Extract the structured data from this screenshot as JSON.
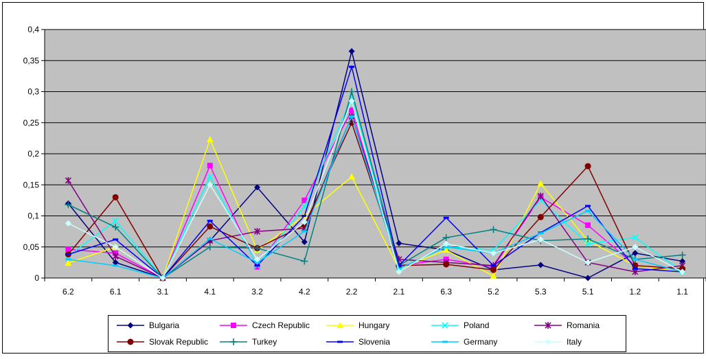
{
  "chart_data": {
    "type": "line",
    "categories": [
      "6.2",
      "6.1",
      "3.1",
      "4.1",
      "3.2",
      "4.2",
      "2.2",
      "2.1",
      "6.3",
      "5.2",
      "5.3",
      "5.1",
      "1.2",
      "1.1"
    ],
    "ylim": [
      0,
      0.4
    ],
    "yticks": [
      "0",
      "0,05",
      "0,1",
      "0,15",
      "0,2",
      "0,25",
      "0,3",
      "0,35",
      "0,4"
    ],
    "grid": true,
    "legend_position": "bottom",
    "plot_background": "#c0c0c0",
    "series": [
      {
        "name": "Bulgaria",
        "color": "#000080",
        "marker": "diamond",
        "values": [
          0.12,
          0.025,
          0.0,
          0.06,
          0.146,
          0.058,
          0.365,
          0.056,
          0.045,
          0.013,
          0.021,
          0.0,
          0.04,
          0.027
        ]
      },
      {
        "name": "Czech Republic",
        "color": "#ff00ff",
        "marker": "square",
        "values": [
          0.046,
          0.04,
          0.0,
          0.181,
          0.018,
          0.125,
          0.27,
          0.02,
          0.03,
          0.018,
          0.13,
          0.085,
          0.02,
          0.01
        ]
      },
      {
        "name": "Hungary",
        "color": "#ffff00",
        "marker": "triangle",
        "values": [
          0.024,
          0.05,
          0.0,
          0.223,
          0.045,
          0.1,
          0.163,
          0.015,
          0.045,
          0.003,
          0.152,
          0.06,
          0.02,
          0.01
        ]
      },
      {
        "name": "Poland",
        "color": "#00ffff",
        "marker": "x",
        "values": [
          0.035,
          0.092,
          0.0,
          0.163,
          0.02,
          0.115,
          0.29,
          0.015,
          0.05,
          0.045,
          0.125,
          0.055,
          0.065,
          0.01
        ]
      },
      {
        "name": "Romania",
        "color": "#800080",
        "marker": "star",
        "values": [
          0.157,
          0.035,
          0.0,
          0.06,
          0.075,
          0.08,
          0.26,
          0.03,
          0.025,
          0.02,
          0.132,
          0.025,
          0.01,
          0.02
        ]
      },
      {
        "name": "Slovak Republic",
        "color": "#800000",
        "marker": "circle",
        "values": [
          0.038,
          0.13,
          0.0,
          0.083,
          0.048,
          0.085,
          0.25,
          0.02,
          0.022,
          0.013,
          0.098,
          0.18,
          0.02,
          0.015
        ]
      },
      {
        "name": "Turkey",
        "color": "#008080",
        "marker": "plus",
        "values": [
          0.118,
          0.082,
          0.0,
          0.05,
          0.048,
          0.027,
          0.3,
          0.02,
          0.065,
          0.078,
          0.06,
          0.063,
          0.03,
          0.037
        ]
      },
      {
        "name": "Slovenia",
        "color": "#0000ff",
        "marker": "dash",
        "values": [
          0.038,
          0.062,
          0.0,
          0.092,
          0.02,
          0.1,
          0.34,
          0.02,
          0.097,
          0.02,
          0.073,
          0.116,
          0.015,
          0.01
        ]
      },
      {
        "name": "Germany",
        "color": "#00ccff",
        "marker": "dash",
        "values": [
          0.03,
          0.02,
          0.0,
          0.063,
          0.025,
          0.075,
          0.26,
          0.015,
          0.05,
          0.04,
          0.072,
          0.108,
          0.03,
          0.01
        ]
      },
      {
        "name": "Italy",
        "color": "#ccffff",
        "marker": "diamond",
        "values": [
          0.088,
          0.05,
          0.0,
          0.15,
          0.03,
          0.09,
          0.285,
          0.01,
          0.055,
          0.04,
          0.062,
          0.025,
          0.05,
          0.01
        ]
      }
    ]
  }
}
